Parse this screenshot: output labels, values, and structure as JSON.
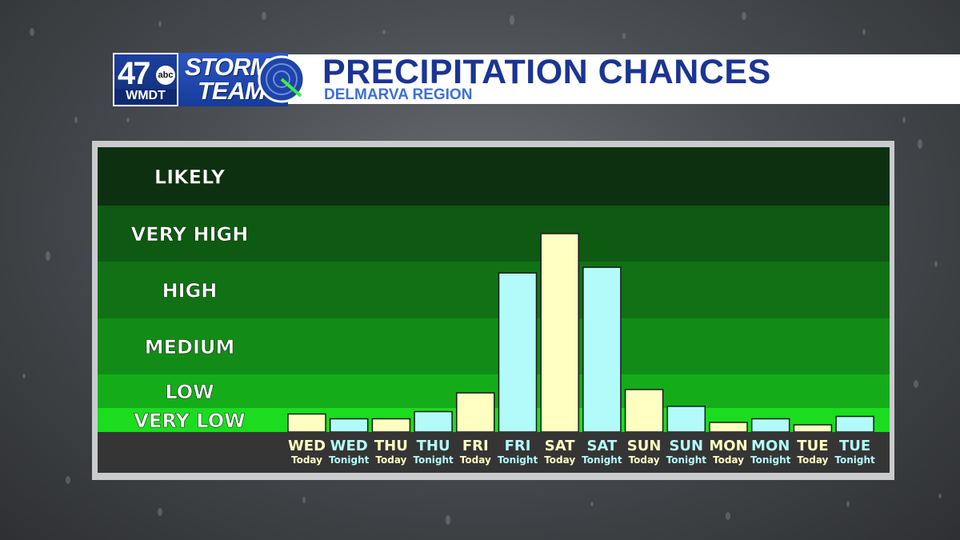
{
  "header": {
    "logo_number": "47",
    "logo_network": "abc",
    "logo_callsign": "WMDT",
    "brand_line1": "STORM",
    "brand_line2": "TEAM",
    "title": "PRECIPITATION CHANCES",
    "subtitle": "DELMARVA REGION"
  },
  "colors": {
    "header_title": "#1b3592",
    "header_subtitle": "#3d6fd8",
    "bar_today": "#ffffc2",
    "bar_tonight": "#b3fbfb",
    "band_likely": "#0d3011",
    "band_very_high": "#0e5a12",
    "band_high": "#107214",
    "band_medium": "#128c16",
    "band_low": "#14ad19",
    "band_very_low": "#1bdc1f",
    "label_strip": "#353535"
  },
  "chart_data": {
    "type": "bar",
    "title": "PRECIPITATION CHANCES",
    "subtitle": "DELMARVA REGION",
    "y_levels": [
      "VERY LOW",
      "LOW",
      "MEDIUM",
      "HIGH",
      "VERY HIGH",
      "LIKELY"
    ],
    "ylim": [
      0,
      6
    ],
    "grid": false,
    "categories": [
      {
        "day": "WED",
        "period": "Today"
      },
      {
        "day": "WED",
        "period": "Tonight"
      },
      {
        "day": "THU",
        "period": "Today"
      },
      {
        "day": "THU",
        "period": "Tonight"
      },
      {
        "day": "FRI",
        "period": "Today"
      },
      {
        "day": "FRI",
        "period": "Tonight"
      },
      {
        "day": "SAT",
        "period": "Today"
      },
      {
        "day": "SAT",
        "period": "Tonight"
      },
      {
        "day": "SUN",
        "period": "Today"
      },
      {
        "day": "SUN",
        "period": "Tonight"
      },
      {
        "day": "MON",
        "period": "Today"
      },
      {
        "day": "MON",
        "period": "Tonight"
      },
      {
        "day": "TUE",
        "period": "Today"
      },
      {
        "day": "TUE",
        "period": "Tonight"
      }
    ],
    "values": [
      0.75,
      0.55,
      0.55,
      0.85,
      1.45,
      3.8,
      4.5,
      3.9,
      1.55,
      1.05,
      0.4,
      0.55,
      0.3,
      0.65
    ]
  }
}
